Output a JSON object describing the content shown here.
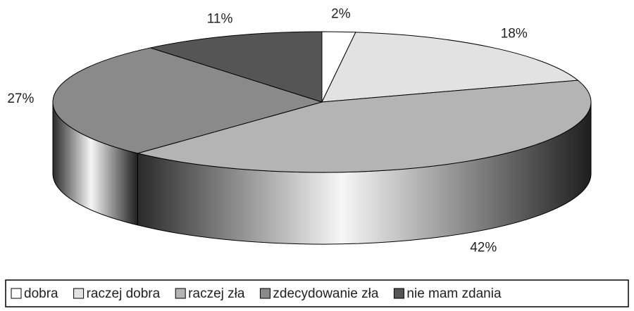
{
  "chart_data": {
    "type": "pie3d",
    "categories": [
      "dobra",
      "raczej dobra",
      "raczej zła",
      "zdecydowanie zła",
      "nie mam zdania"
    ],
    "values": [
      2,
      18,
      42,
      27,
      11
    ],
    "value_labels": [
      "2%",
      "18%",
      "42%",
      "27%",
      "11%"
    ],
    "colors": [
      "#ffffff",
      "#e2e2e2",
      "#b4b4b4",
      "#8a8a8a",
      "#555555"
    ],
    "legend": "bottom"
  }
}
